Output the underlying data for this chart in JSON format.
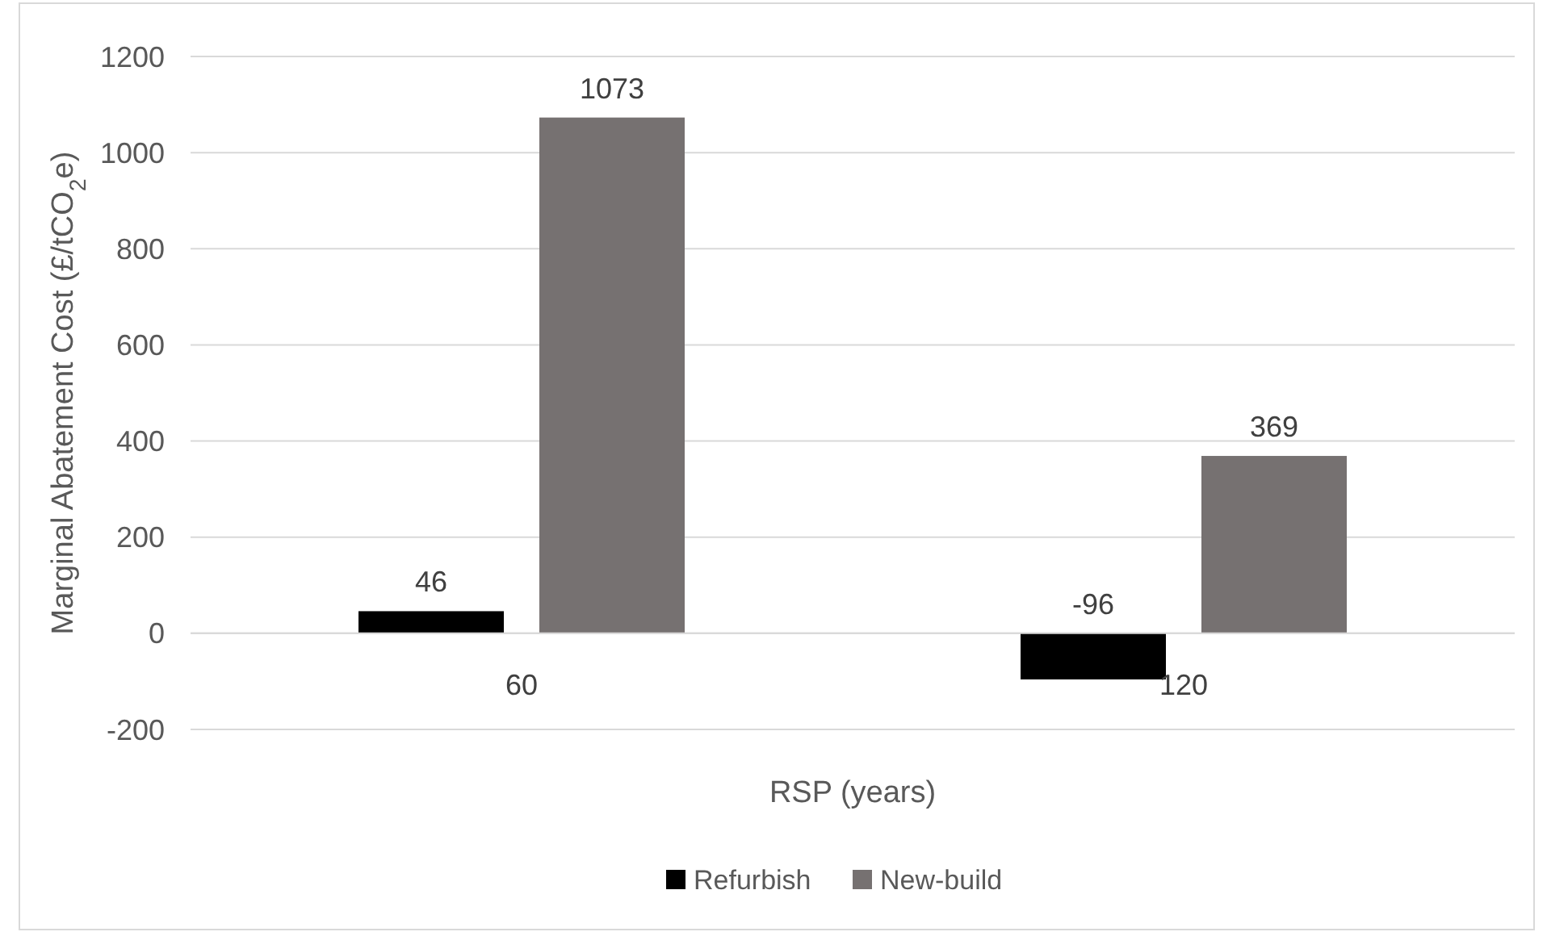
{
  "chart_data": {
    "type": "bar",
    "xlabel": "RSP (years)",
    "ylabel": "Marginal Abatement Cost (£/tCO$_{2}$e)",
    "categories": [
      "60",
      "120"
    ],
    "series": [
      {
        "name": "Refurbish",
        "color": "#000000",
        "values": [
          46,
          -96
        ]
      },
      {
        "name": "New-build",
        "color": "#767171",
        "values": [
          1073,
          369
        ]
      }
    ],
    "ylim": [
      -200,
      1200
    ],
    "yticks": [
      -200,
      0,
      200,
      400,
      600,
      800,
      1000,
      1200
    ],
    "grid": "y",
    "legend": "bottom",
    "data_labels": true
  }
}
